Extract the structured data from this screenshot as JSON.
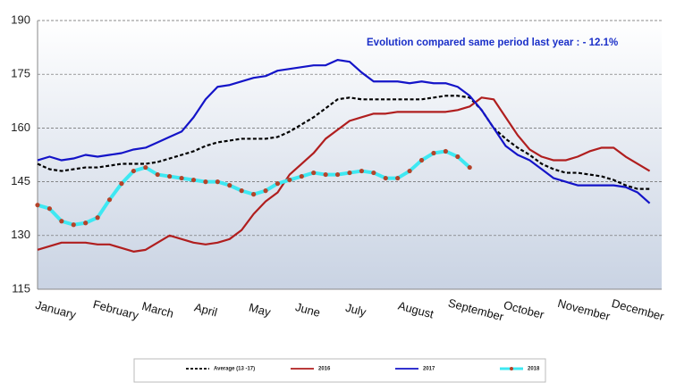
{
  "chart_data": {
    "type": "line",
    "annotation": "Evolution compared same period last year   : - 12.1%",
    "x": [
      1,
      2,
      3,
      4,
      5,
      6,
      7,
      8,
      9,
      10,
      11,
      12,
      13,
      14,
      15,
      16,
      17,
      18,
      19,
      20,
      21,
      22,
      23,
      24,
      25,
      26,
      27,
      28,
      29,
      30,
      31,
      32,
      33,
      34,
      35,
      36,
      37,
      38,
      39,
      40,
      41,
      42,
      43,
      44,
      45,
      46,
      47,
      48,
      49,
      50,
      51,
      52
    ],
    "xlim": [
      1,
      53
    ],
    "xticks": [
      {
        "value": 2.5,
        "label": "January"
      },
      {
        "value": 7.5,
        "label": "February"
      },
      {
        "value": 11,
        "label": "March"
      },
      {
        "value": 15,
        "label": "April"
      },
      {
        "value": 19.5,
        "label": "May"
      },
      {
        "value": 23.5,
        "label": "June"
      },
      {
        "value": 27.5,
        "label": "July"
      },
      {
        "value": 32.5,
        "label": "August"
      },
      {
        "value": 37.5,
        "label": "September"
      },
      {
        "value": 41.5,
        "label": "October"
      },
      {
        "value": 46.5,
        "label": "November"
      },
      {
        "value": 51,
        "label": "December"
      }
    ],
    "ylim": [
      115,
      190
    ],
    "yticks": [
      115,
      130,
      145,
      160,
      175,
      190
    ],
    "grid": true,
    "legend": "bottom",
    "series": [
      {
        "name": "Average  (13 -17)",
        "color": "#000000",
        "line_style": "dashed",
        "values": [
          150,
          148.5,
          148,
          148.5,
          149,
          149,
          149.5,
          150,
          150,
          150,
          150.5,
          151.5,
          152.5,
          153.5,
          155,
          156,
          156.5,
          157,
          157,
          157,
          157.5,
          159,
          161,
          163,
          165.5,
          168,
          168.5,
          168,
          168,
          168,
          168,
          168,
          168,
          168.5,
          169,
          169,
          168.5,
          165,
          160,
          157,
          154.5,
          152.5,
          150,
          148.5,
          147.5,
          147.5,
          147,
          146.5,
          145.5,
          144,
          143,
          143
        ]
      },
      {
        "name": "2016",
        "color": "#b01e1e",
        "line_style": "solid",
        "values": [
          126,
          127,
          128,
          128,
          128,
          127.5,
          127.5,
          126.5,
          125.5,
          126,
          128,
          130,
          129,
          128,
          127.5,
          128,
          129,
          131.5,
          136,
          139.5,
          142,
          147,
          150,
          153,
          157,
          159.5,
          162,
          163,
          164,
          164,
          164.5,
          164.5,
          164.5,
          164.5,
          164.5,
          165,
          166,
          168.5,
          168,
          163,
          158,
          154,
          152,
          151,
          151,
          152,
          153.5,
          154.5,
          154.5,
          152,
          150,
          148
        ]
      },
      {
        "name": "2017",
        "color": "#1414c8",
        "line_style": "solid",
        "values": [
          151,
          152,
          151,
          151.5,
          152.5,
          152,
          152.5,
          153,
          154,
          154.5,
          156,
          157.5,
          159,
          163,
          168,
          171.5,
          172,
          173,
          174,
          174.5,
          176,
          176.5,
          177,
          177.5,
          177.5,
          179,
          178.5,
          175.5,
          173,
          173,
          173,
          172.5,
          173,
          172.5,
          172.5,
          171.5,
          169,
          165,
          160,
          155,
          152.5,
          151,
          148.5,
          146,
          145,
          144,
          144,
          144,
          144,
          143.5,
          142,
          139
        ]
      },
      {
        "name": "2018",
        "color": "#3ee8f2",
        "line_style": "solid",
        "marker": "circle",
        "marker_color": "#b5432a",
        "values": [
          138.5,
          137.5,
          134,
          133,
          133.5,
          135,
          140,
          144.5,
          148,
          149,
          147,
          146.5,
          146,
          145.5,
          145,
          145,
          144,
          142.5,
          141.5,
          142.5,
          144.5,
          145.5,
          146.5,
          147.5,
          147,
          147,
          147.5,
          148,
          147.5,
          146,
          146,
          148,
          151,
          153,
          153.5,
          152,
          149,
          null,
          null,
          null,
          null,
          null,
          null,
          null,
          null,
          null,
          null,
          null,
          null,
          null,
          null,
          null
        ]
      }
    ]
  }
}
